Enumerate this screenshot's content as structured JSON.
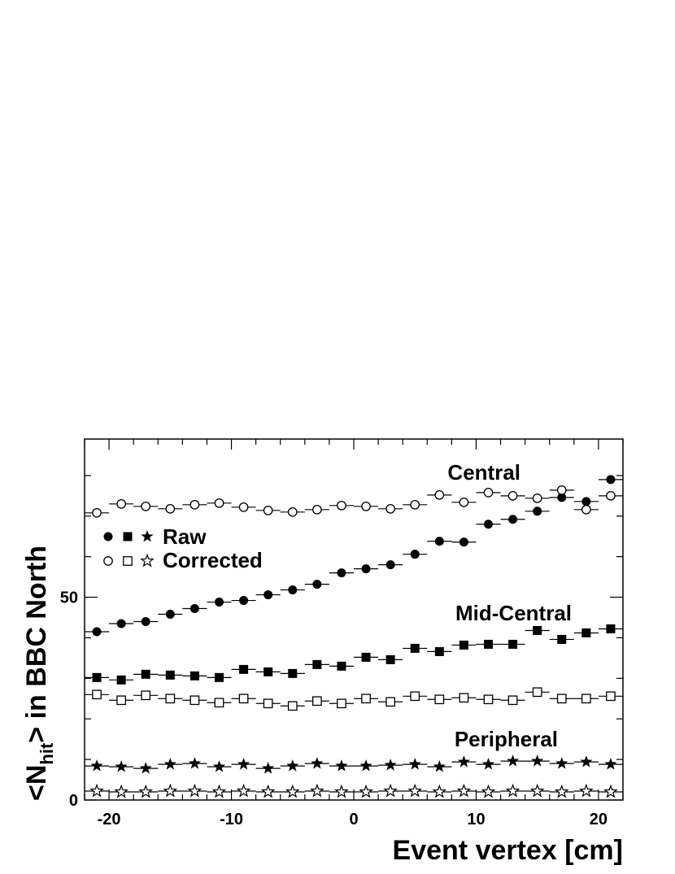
{
  "chart_data": {
    "type": "scatter",
    "xlabel": "Event vertex [cm]",
    "ylabel": {
      "pre": "<N",
      "sub": "hit",
      "post": "> in BBC North"
    },
    "xlim": [
      -22,
      22
    ],
    "ylim": [
      0,
      89
    ],
    "x_ticks": [
      -20,
      -10,
      0,
      10,
      20
    ],
    "y_ticks": [
      0,
      50
    ],
    "grid": false,
    "x": [
      -21,
      -19,
      -17,
      -15,
      -13,
      -11,
      -9,
      -7,
      -5,
      -3,
      -1,
      1,
      3,
      5,
      7,
      9,
      11,
      13,
      15,
      17,
      19,
      21
    ],
    "x_error": 1,
    "group_labels": [
      "Central",
      "Mid-Central",
      "Peripheral"
    ],
    "legend": {
      "placement": "upper-left",
      "entries": [
        {
          "text": "Raw",
          "symbols": [
            "filled-circle",
            "filled-square",
            "filled-star"
          ]
        },
        {
          "text": "Corrected",
          "symbols": [
            "open-circle",
            "open-square",
            "open-star"
          ]
        }
      ]
    },
    "series": [
      {
        "group": "Central",
        "kind": "Raw",
        "marker": "filled-circle",
        "values": [
          41.5,
          43.5,
          44.0,
          45.8,
          47.2,
          48.8,
          49.2,
          50.6,
          51.8,
          53.2,
          56.0,
          57.0,
          58.0,
          60.6,
          63.8,
          63.6,
          68.0,
          69.2,
          71.2,
          74.6,
          73.6,
          79.0
        ]
      },
      {
        "group": "Central",
        "kind": "Corrected",
        "marker": "open-circle",
        "values": [
          70.8,
          73.0,
          72.4,
          71.8,
          72.8,
          73.2,
          72.2,
          71.4,
          71.0,
          71.6,
          72.6,
          72.4,
          71.8,
          72.8,
          75.2,
          73.4,
          75.8,
          75.0,
          74.4,
          76.4,
          71.6,
          75.0
        ]
      },
      {
        "group": "Mid-Central",
        "kind": "Raw",
        "marker": "filled-square",
        "values": [
          30.2,
          29.6,
          31.0,
          30.8,
          30.6,
          30.2,
          32.2,
          31.6,
          31.2,
          33.4,
          33.0,
          35.2,
          34.6,
          37.4,
          36.6,
          38.2,
          38.4,
          38.4,
          41.8,
          39.6,
          41.2,
          42.2
        ]
      },
      {
        "group": "Mid-Central",
        "kind": "Corrected",
        "marker": "open-square",
        "values": [
          26.0,
          24.6,
          25.8,
          25.0,
          24.6,
          24.0,
          25.0,
          23.8,
          23.2,
          24.4,
          23.8,
          25.0,
          24.2,
          25.6,
          24.8,
          25.2,
          24.8,
          24.6,
          26.6,
          25.0,
          25.0,
          25.6
        ]
      },
      {
        "group": "Peripheral",
        "kind": "Raw",
        "marker": "filled-star",
        "values": [
          8.4,
          8.2,
          7.8,
          8.8,
          9.0,
          8.2,
          8.8,
          7.8,
          8.4,
          9.0,
          8.4,
          8.4,
          8.6,
          8.8,
          8.2,
          9.4,
          8.8,
          9.6,
          9.6,
          9.0,
          9.4,
          8.8
        ]
      },
      {
        "group": "Peripheral",
        "kind": "Corrected",
        "marker": "open-star",
        "values": [
          2.2,
          2.0,
          2.0,
          2.2,
          2.2,
          2.0,
          2.2,
          2.0,
          2.0,
          2.2,
          2.0,
          2.0,
          2.2,
          2.2,
          2.0,
          2.2,
          2.0,
          2.2,
          2.2,
          2.0,
          2.2,
          2.0
        ]
      }
    ]
  }
}
